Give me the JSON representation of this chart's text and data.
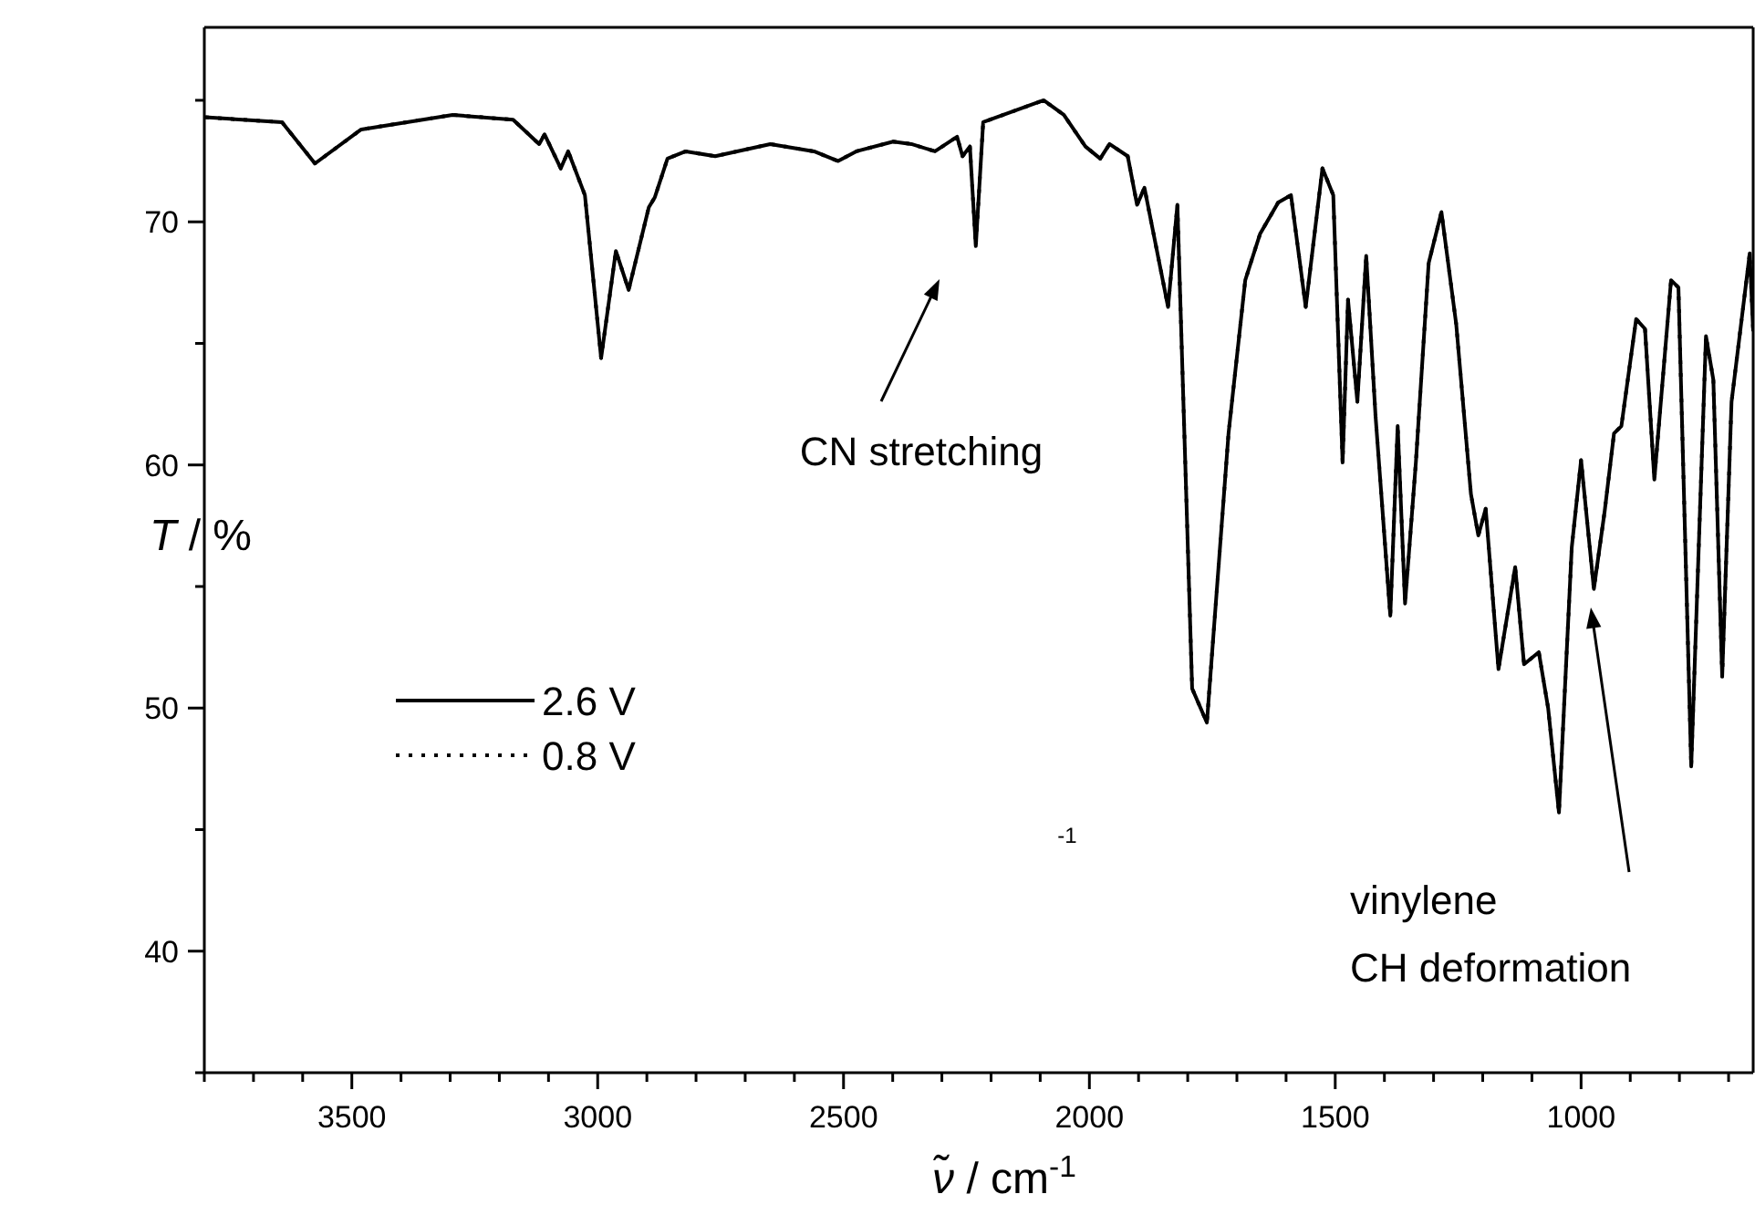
{
  "chart_data": {
    "type": "line",
    "xlabel": "ν̃ / cm$^{-1}$",
    "ylabel": "T / %",
    "x": [
      3798,
      3642,
      3575,
      3481,
      3295,
      3172,
      3119,
      3108,
      3075,
      3060,
      3026,
      2993,
      2963,
      2937,
      2896,
      2884,
      2858,
      2821,
      2761,
      2649,
      2560,
      2511,
      2474,
      2399,
      2362,
      2314,
      2269,
      2258,
      2243,
      2231,
      2216,
      2175,
      2093,
      2052,
      2008,
      1978,
      1959,
      1922,
      1903,
      1888,
      1840,
      1821,
      1791,
      1761,
      1717,
      1683,
      1653,
      1616,
      1590,
      1560,
      1526,
      1504,
      1485,
      1474,
      1455,
      1437,
      1418,
      1399,
      1388,
      1373,
      1358,
      1336,
      1310,
      1284,
      1254,
      1224,
      1209,
      1194,
      1168,
      1134,
      1116,
      1086,
      1067,
      1045,
      1019,
      1000,
      974,
      952,
      933,
      918,
      888,
      870,
      851,
      817,
      802,
      776,
      746,
      731,
      713,
      694,
      657,
      650
    ],
    "series": [
      {
        "name": "2.6 V",
        "color": "#000000",
        "line_style": "solid",
        "values": [
          74.3,
          74.1,
          72.4,
          73.8,
          74.4,
          74.2,
          73.2,
          73.6,
          72.2,
          72.9,
          71.1,
          64.4,
          68.8,
          67.2,
          70.6,
          71.0,
          72.6,
          72.9,
          72.7,
          73.2,
          72.9,
          72.5,
          72.9,
          73.3,
          73.2,
          72.9,
          73.5,
          72.7,
          73.1,
          69.0,
          74.1,
          74.4,
          75.0,
          74.4,
          73.1,
          72.6,
          73.2,
          72.7,
          70.7,
          71.4,
          66.5,
          70.7,
          50.8,
          49.4,
          61.3,
          67.6,
          69.5,
          70.8,
          71.1,
          66.5,
          72.2,
          71.1,
          60.1,
          66.8,
          62.6,
          68.6,
          62.0,
          56.8,
          53.8,
          61.6,
          54.3,
          60.1,
          68.3,
          70.4,
          65.8,
          58.8,
          57.1,
          58.2,
          51.6,
          55.8,
          51.8,
          52.3,
          50.0,
          45.7,
          56.6,
          60.2,
          54.9,
          58.1,
          61.3,
          61.6,
          66.0,
          65.6,
          59.4,
          67.6,
          67.3,
          47.6,
          65.3,
          63.5,
          51.3,
          62.6,
          68.7,
          65.5
        ]
      },
      {
        "name": "0.8 V",
        "color": "#000000",
        "line_style": "dotted",
        "values": [
          74.3,
          74.1,
          72.4,
          73.8,
          74.4,
          74.2,
          73.2,
          73.6,
          72.2,
          72.9,
          71.1,
          64.4,
          68.8,
          67.2,
          70.6,
          71.0,
          72.6,
          72.9,
          72.7,
          73.2,
          72.9,
          72.5,
          72.9,
          73.3,
          73.2,
          72.9,
          73.5,
          72.7,
          73.1,
          69.0,
          74.1,
          74.4,
          75.0,
          74.4,
          73.1,
          72.6,
          73.2,
          72.7,
          70.7,
          71.4,
          66.5,
          70.7,
          50.8,
          49.4,
          61.3,
          67.6,
          69.5,
          70.8,
          71.1,
          66.5,
          72.2,
          71.1,
          60.1,
          66.8,
          62.6,
          68.6,
          62.0,
          56.8,
          53.8,
          61.6,
          54.3,
          60.1,
          68.3,
          70.4,
          65.8,
          58.8,
          57.1,
          58.2,
          51.6,
          55.8,
          51.8,
          52.3,
          50.0,
          45.7,
          56.6,
          60.2,
          54.9,
          58.1,
          61.3,
          61.6,
          66.0,
          65.6,
          59.4,
          67.6,
          67.3,
          47.6,
          65.3,
          63.5,
          51.3,
          62.6,
          68.7,
          65.5
        ]
      }
    ],
    "xlim": [
      3800,
      650
    ],
    "xticks": [
      {
        "value": 3800,
        "label": null
      },
      {
        "value": 3700,
        "label": null
      },
      {
        "value": 3600,
        "label": null
      },
      3500,
      {
        "value": 3400,
        "label": null
      },
      {
        "value": 3300,
        "label": null
      },
      {
        "value": 3200,
        "label": null
      },
      {
        "value": 3100,
        "label": null
      },
      3000,
      {
        "value": 2900,
        "label": null
      },
      {
        "value": 2800,
        "label": null
      },
      {
        "value": 2700,
        "label": null
      },
      {
        "value": 2600,
        "label": null
      },
      2500,
      {
        "value": 2400,
        "label": null
      },
      {
        "value": 2300,
        "label": null
      },
      {
        "value": 2200,
        "label": null
      },
      {
        "value": 2100,
        "label": null
      },
      2000,
      {
        "value": 1900,
        "label": null
      },
      {
        "value": 1800,
        "label": null
      },
      {
        "value": 1700,
        "label": null
      },
      {
        "value": 1600,
        "label": null
      },
      1500,
      {
        "value": 1400,
        "label": null
      },
      {
        "value": 1300,
        "label": null
      },
      {
        "value": 1200,
        "label": null
      },
      {
        "value": 1100,
        "label": null
      },
      1000,
      {
        "value": 900,
        "label": null
      },
      {
        "value": 800,
        "label": null
      },
      {
        "value": 700,
        "label": null
      }
    ],
    "ylim": [
      35,
      78
    ],
    "yticks": [
      {
        "value": 35,
        "label": null
      },
      40,
      {
        "value": 45,
        "label": null
      },
      50,
      {
        "value": 55,
        "label": null
      },
      60,
      {
        "value": 65,
        "label": null
      },
      70,
      {
        "value": 75,
        "label": null
      }
    ],
    "legend": "left",
    "annotations": [
      "CN stretching",
      "vinylene\nCH deformation",
      "-1"
    ]
  }
}
